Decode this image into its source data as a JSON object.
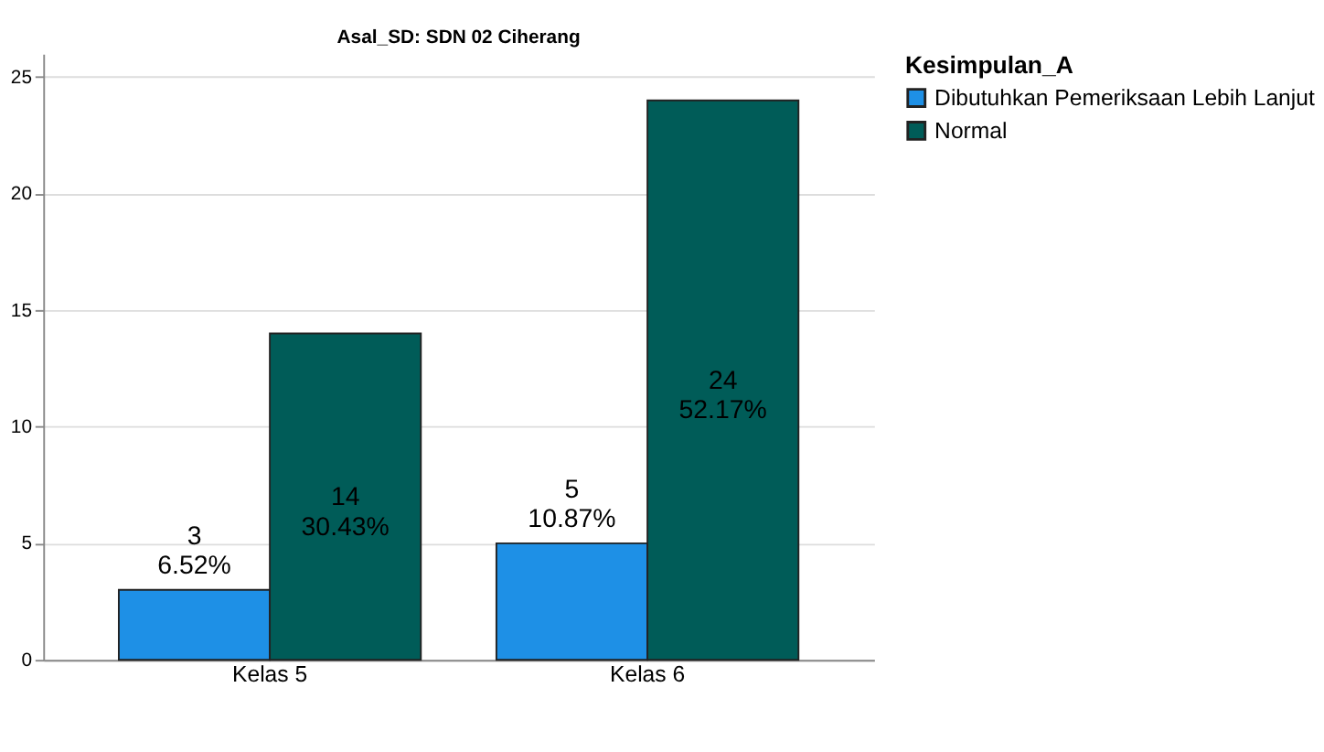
{
  "chart_data": {
    "type": "bar",
    "title": "Asal_SD: SDN 02 Ciherang",
    "legend_title": "Kesimpulan_A",
    "categories": [
      "Kelas 5",
      "Kelas 6"
    ],
    "series": [
      {
        "name": "Dibutuhkan Pemeriksaan Lebih Lanjut",
        "color": "#1e90e6",
        "values": [
          3,
          5
        ],
        "value_labels": [
          "3\n6.52%",
          "5\n10.87%"
        ]
      },
      {
        "name": "Normal",
        "color": "#005c58",
        "values": [
          14,
          24
        ],
        "value_labels": [
          "14\n30.43%",
          "24\n52.17%"
        ]
      }
    ],
    "ylim": [
      0,
      26
    ],
    "yticks": [
      0,
      5,
      10,
      15,
      20,
      25
    ],
    "grid": "y",
    "legend": "top right"
  }
}
